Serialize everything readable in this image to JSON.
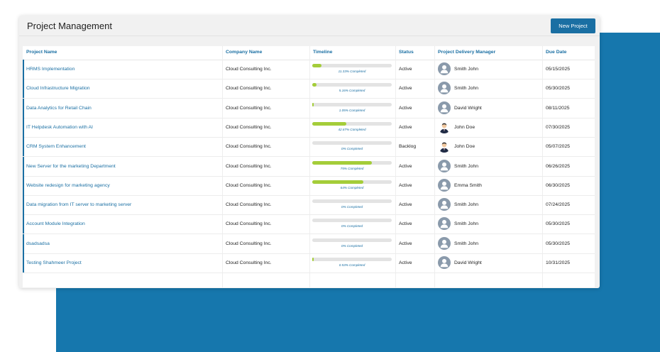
{
  "header": {
    "title": "Project Management",
    "new_project_label": "New Project"
  },
  "table": {
    "columns": [
      "Project Name",
      "Company Name",
      "Timeline",
      "Status",
      "Project Delivery Manager",
      "Due Date"
    ],
    "rows": [
      {
        "project": "HRMS Implementation",
        "company": "Cloud Consulting Inc.",
        "progress": 11.33,
        "progress_label": "11.33% Completed",
        "status": "Active",
        "manager": "Smith John",
        "avatar": "generic",
        "due": "05/15/2025"
      },
      {
        "project": "Cloud Infrastructure Migration",
        "company": "Cloud Consulting Inc.",
        "progress": 5.16,
        "progress_label": "5.16% Completed",
        "status": "Active",
        "manager": "Smith John",
        "avatar": "generic",
        "due": "05/30/2025"
      },
      {
        "project": "Data Analytics for Retail Chain",
        "company": "Cloud Consulting Inc.",
        "progress": 1.05,
        "progress_label": "1.05% Completed",
        "status": "Active",
        "manager": "David Wright",
        "avatar": "generic",
        "due": "08/11/2025"
      },
      {
        "project": "IT Helpdesk Automation with AI",
        "company": "Cloud Consulting Inc.",
        "progress": 42.67,
        "progress_label": "42.67% Completed",
        "status": "Active",
        "manager": "John Doe",
        "avatar": "person",
        "due": "07/30/2025"
      },
      {
        "project": "CRM System Enhancement",
        "company": "Cloud Consulting Inc.",
        "progress": 0,
        "progress_label": "0% Completed",
        "status": "Backlog",
        "manager": "John Doe",
        "avatar": "person",
        "due": "05/07/2025"
      },
      {
        "project": "New Server for the marketing Department",
        "company": "Cloud Consulting Inc.",
        "progress": 75,
        "progress_label": "75% Completed",
        "status": "Active",
        "manager": "Smith John",
        "avatar": "generic",
        "due": "06/26/2025"
      },
      {
        "project": "Website redesign for marketing agency",
        "company": "Cloud Consulting Inc.",
        "progress": 64,
        "progress_label": "64% Completed",
        "status": "Active",
        "manager": "Emma Smith",
        "avatar": "generic",
        "due": "06/30/2025"
      },
      {
        "project": "Data migration from IT server to marketing server",
        "company": "Cloud Consulting Inc.",
        "progress": 0,
        "progress_label": "0% Completed",
        "status": "Active",
        "manager": "Smith John",
        "avatar": "generic",
        "due": "07/24/2025"
      },
      {
        "project": "Account Module Integration",
        "company": "Cloud Consulting Inc.",
        "progress": 0,
        "progress_label": "0% Completed",
        "status": "Active",
        "manager": "Smith John",
        "avatar": "generic",
        "due": "05/30/2025"
      },
      {
        "project": "dsadsadsa",
        "company": "Cloud Consulting Inc.",
        "progress": 0,
        "progress_label": "0% Completed",
        "status": "Active",
        "manager": "Smith John",
        "avatar": "generic",
        "due": "05/30/2025"
      },
      {
        "project": "Testing Shahmeer Project",
        "company": "Cloud Consulting Inc.",
        "progress": 0.53,
        "progress_label": "0.53% Completed",
        "status": "Active",
        "manager": "David Wright",
        "avatar": "generic",
        "due": "10/31/2025"
      }
    ]
  },
  "colors": {
    "accent": "#1a6fa3",
    "progress_fill": "#a4cd39",
    "background_block": "#1677ad"
  }
}
